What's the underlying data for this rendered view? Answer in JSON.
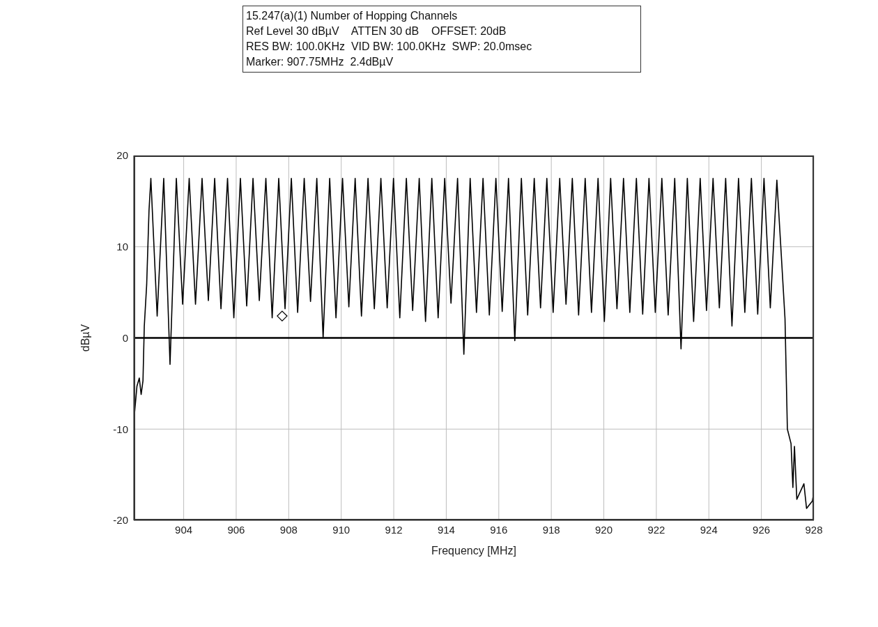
{
  "chart_data": {
    "type": "line",
    "title": "15.247(a)(1) Number of Hopping Channels",
    "annotations": [
      "Ref Level 30 dBµV    ATTEN 30 dB    OFFSET: 20dB",
      "RES BW: 100.0KHz  VID BW: 100.0KHz  SWP: 20.0msec",
      "Marker: 907.75MHz  2.4dBµV"
    ],
    "xlabel": "Frequency [MHz]",
    "ylabel": "dBµV",
    "xlim": [
      902.1,
      928
    ],
    "xticks": [
      904,
      906,
      908,
      910,
      912,
      914,
      916,
      918,
      920,
      922,
      924,
      926,
      928
    ],
    "ylim": [
      -20,
      20
    ],
    "yticks": [
      -20,
      -10,
      0,
      10,
      20
    ],
    "grid": true,
    "ref_lines": [
      {
        "axis": "y",
        "value": 0,
        "color": "#000000"
      }
    ],
    "series": [
      {
        "type": "line",
        "color": "#000000",
        "x": [
          902.1,
          902.13,
          902.22,
          902.31,
          902.38,
          902.45,
          902.5,
          902.59,
          902.68,
          902.75,
          902.99,
          903.24,
          903.48,
          903.72,
          903.96,
          904.21,
          904.45,
          904.7,
          904.94,
          905.18,
          905.42,
          905.67,
          905.91,
          906.16,
          906.4,
          906.64,
          906.88,
          907.13,
          907.37,
          907.62,
          907.86,
          908.1,
          908.34,
          908.59,
          908.83,
          909.07,
          909.31,
          909.56,
          909.8,
          910.05,
          910.29,
          910.53,
          910.77,
          911.02,
          911.26,
          911.51,
          911.75,
          911.99,
          912.23,
          912.48,
          912.72,
          912.97,
          913.21,
          913.45,
          913.69,
          913.94,
          914.18,
          914.43,
          914.67,
          914.91,
          915.15,
          915.4,
          915.64,
          915.89,
          916.13,
          916.37,
          916.61,
          916.86,
          917.1,
          917.35,
          917.59,
          917.83,
          918.07,
          918.32,
          918.56,
          918.8,
          919.04,
          919.29,
          919.53,
          919.78,
          920.02,
          920.26,
          920.5,
          920.75,
          920.99,
          921.24,
          921.48,
          921.72,
          921.96,
          922.21,
          922.45,
          922.7,
          922.94,
          923.18,
          923.42,
          923.67,
          923.91,
          924.16,
          924.4,
          924.64,
          924.88,
          925.13,
          925.37,
          925.62,
          925.86,
          926.1,
          926.34,
          926.59,
          926.76,
          926.9,
          926.99,
          927.13,
          927.2,
          927.26,
          927.35,
          927.62,
          927.72,
          927.94,
          928
        ],
        "values": [
          -10.3,
          -8.2,
          -5.3,
          -4.4,
          -6.2,
          -4.7,
          1.3,
          5.8,
          14,
          17.5,
          2.4,
          17.5,
          -2.9,
          17.5,
          3.7,
          17.5,
          3.7,
          17.5,
          4.1,
          17.5,
          3.2,
          17.5,
          2.2,
          17.5,
          3.5,
          17.5,
          4.1,
          17.5,
          2.2,
          17.5,
          3.2,
          17.5,
          2.8,
          17.5,
          4.0,
          17.5,
          0,
          17.5,
          2.2,
          17.5,
          3.4,
          17.5,
          2.4,
          17.5,
          3.2,
          17.5,
          3.3,
          17.5,
          2.2,
          17.5,
          3.0,
          17.5,
          1.8,
          17.5,
          2.2,
          17.5,
          3.8,
          17.5,
          -1.8,
          17.5,
          2.8,
          17.5,
          2.5,
          17.5,
          2.9,
          17.5,
          -0.3,
          17.5,
          2.5,
          17.5,
          3.3,
          17.5,
          2.8,
          17.5,
          3.7,
          17.5,
          2.5,
          17.5,
          2.8,
          17.5,
          1.8,
          17.5,
          3.2,
          17.5,
          2.8,
          17.5,
          2.6,
          17.5,
          2.8,
          17.5,
          2.5,
          17.5,
          -1.2,
          17.5,
          1.8,
          17.5,
          3.0,
          17.5,
          3.3,
          17.5,
          1.3,
          17.5,
          2.8,
          17.5,
          2.6,
          17.5,
          3.3,
          17.3,
          9.0,
          2.1,
          -10.0,
          -11.6,
          -16.4,
          -11.9,
          -17.7,
          -16.0,
          -18.7,
          -17.9,
          -16.9
        ]
      },
      {
        "type": "scatter",
        "color": "#000000",
        "marker": "diamond",
        "x": [
          907.75
        ],
        "values": [
          2.4
        ]
      }
    ]
  }
}
